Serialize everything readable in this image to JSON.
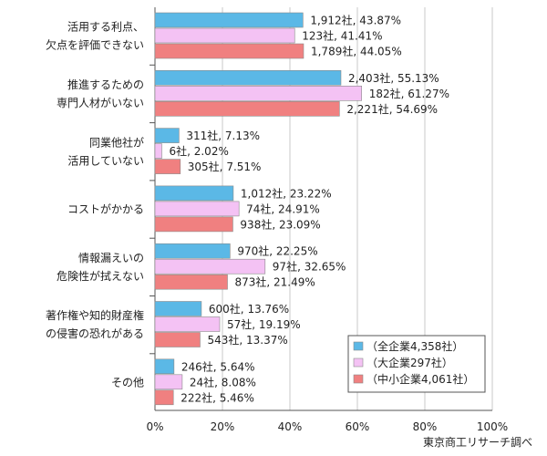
{
  "chart_data": {
    "type": "bar",
    "orientation": "horizontal",
    "grid": true,
    "legend_position": "bottom-right",
    "xlim": [
      0,
      100
    ],
    "x_ticks": [
      "0%",
      "20%",
      "40%",
      "60%",
      "80%",
      "100%"
    ],
    "categories": [
      [
        "活用する利点、",
        "欠点を評価できない"
      ],
      [
        "推進するための",
        "専門人材がいない"
      ],
      [
        "同業他社が",
        "活用していない"
      ],
      [
        "コストがかかる"
      ],
      [
        "情報漏えいの",
        "危険性が拭えない"
      ],
      [
        "著作権や知的財産権",
        "の侵害の恐れがある"
      ],
      [
        "その他"
      ]
    ],
    "series": [
      {
        "name": "（全企業4,358社）",
        "color": "#5bb8e6",
        "values": [
          43.87,
          55.13,
          7.13,
          23.22,
          22.25,
          13.76,
          5.64
        ],
        "labels": [
          "1,912社, 43.87%",
          "2,403社, 55.13%",
          "311社, 7.13%",
          "1,012社, 23.22%",
          "970社, 22.25%",
          "600社, 13.76%",
          "246社, 5.64%"
        ]
      },
      {
        "name": "（大企業297社）",
        "color": "#f4c2f4",
        "values": [
          41.41,
          61.27,
          2.02,
          24.91,
          32.65,
          19.19,
          8.08
        ],
        "labels": [
          "123社, 41.41%",
          "182社, 61.27%",
          "6社, 2.02%",
          "74社, 24.91%",
          "97社, 32.65%",
          "57社, 19.19%",
          "24社, 8.08%"
        ]
      },
      {
        "name": "（中小企業4,061社）",
        "color": "#f08080",
        "values": [
          44.05,
          54.69,
          7.51,
          23.09,
          21.49,
          13.37,
          5.46
        ],
        "labels": [
          "1,789社, 44.05%",
          "2,221社, 54.69%",
          "305社, 7.51%",
          "938社, 23.09%",
          "873社, 21.49%",
          "543社, 13.37%",
          "222社, 5.46%"
        ]
      }
    ]
  },
  "source": "東京商工リサーチ調べ"
}
